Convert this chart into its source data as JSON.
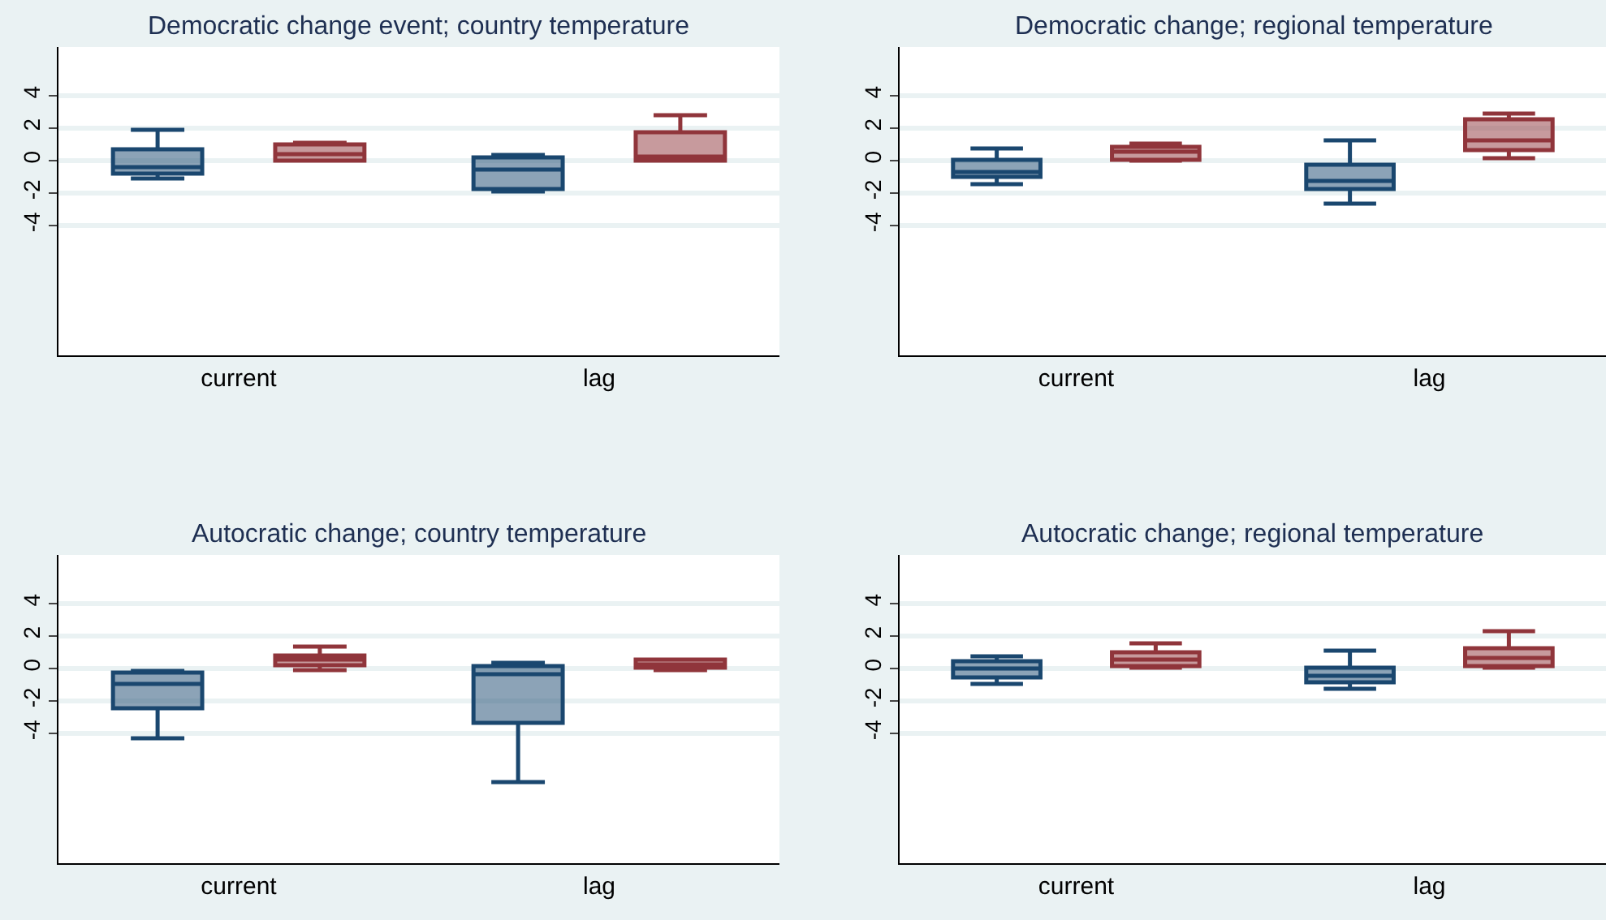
{
  "chart_data": [
    {
      "type": "box",
      "title": "Democratic change event; country temperature",
      "categories": [
        "current",
        "lag"
      ],
      "ylim": [
        -12,
        7
      ],
      "yticks": [
        -4,
        -2,
        0,
        2,
        4
      ],
      "grid": "y",
      "series": [
        {
          "color": "#1a476f",
          "boxes": [
            {
              "low": -1.1,
              "q1": -0.8,
              "median": -0.4,
              "q3": 0.7,
              "high": 1.9
            },
            {
              "low": -1.9,
              "q1": -1.75,
              "median": -0.55,
              "q3": 0.2,
              "high": 0.35
            }
          ]
        },
        {
          "color": "#90353b",
          "boxes": [
            {
              "low": 0.0,
              "q1": 0.0,
              "median": 0.4,
              "q3": 1.0,
              "high": 1.1
            },
            {
              "low": 0.0,
              "q1": 0.0,
              "median": 0.25,
              "q3": 1.75,
              "high": 2.8
            }
          ]
        }
      ]
    },
    {
      "type": "box",
      "title": "Democratic change; regional temperature",
      "categories": [
        "current",
        "lag"
      ],
      "ylim": [
        -12,
        7
      ],
      "yticks": [
        -4,
        -2,
        0,
        2,
        4
      ],
      "grid": "y",
      "series": [
        {
          "color": "#1a476f",
          "boxes": [
            {
              "low": -1.45,
              "q1": -1.0,
              "median": -0.7,
              "q3": 0.05,
              "high": 0.75
            },
            {
              "low": -2.65,
              "q1": -1.75,
              "median": -1.25,
              "q3": -0.25,
              "high": 1.25
            }
          ]
        },
        {
          "color": "#90353b",
          "boxes": [
            {
              "low": 0.0,
              "q1": 0.05,
              "median": 0.55,
              "q3": 0.85,
              "high": 1.05
            },
            {
              "low": 0.15,
              "q1": 0.65,
              "median": 1.25,
              "q3": 2.55,
              "high": 2.9
            }
          ]
        }
      ]
    },
    {
      "type": "box",
      "title": "Autocratic change; country temperature",
      "categories": [
        "current",
        "lag"
      ],
      "ylim": [
        -12,
        7
      ],
      "yticks": [
        -4,
        -2,
        0,
        2,
        4
      ],
      "grid": "y",
      "series": [
        {
          "color": "#1a476f",
          "boxes": [
            {
              "low": -4.3,
              "q1": -2.45,
              "median": -0.95,
              "q3": -0.25,
              "high": -0.15
            },
            {
              "low": -7.0,
              "q1": -3.35,
              "median": -0.35,
              "q3": 0.15,
              "high": 0.35
            }
          ]
        },
        {
          "color": "#90353b",
          "boxes": [
            {
              "low": -0.1,
              "q1": 0.2,
              "median": 0.55,
              "q3": 0.8,
              "high": 1.35
            },
            {
              "low": -0.1,
              "q1": 0.05,
              "median": 0.25,
              "q3": 0.55,
              "high": 0.55
            }
          ]
        }
      ]
    },
    {
      "type": "box",
      "title": "Autocratic change; regional temperature",
      "categories": [
        "current",
        "lag"
      ],
      "ylim": [
        -12,
        7
      ],
      "yticks": [
        -4,
        -2,
        0,
        2,
        4
      ],
      "grid": "y",
      "series": [
        {
          "color": "#1a476f",
          "boxes": [
            {
              "low": -0.95,
              "q1": -0.55,
              "median": 0.0,
              "q3": 0.45,
              "high": 0.75
            },
            {
              "low": -1.25,
              "q1": -0.85,
              "median": -0.45,
              "q3": 0.05,
              "high": 1.1
            }
          ]
        },
        {
          "color": "#90353b",
          "boxes": [
            {
              "low": 0.05,
              "q1": 0.15,
              "median": 0.55,
              "q3": 1.0,
              "high": 1.55
            },
            {
              "low": 0.05,
              "q1": 0.15,
              "median": 0.65,
              "q3": 1.25,
              "high": 2.3
            }
          ]
        }
      ]
    }
  ]
}
